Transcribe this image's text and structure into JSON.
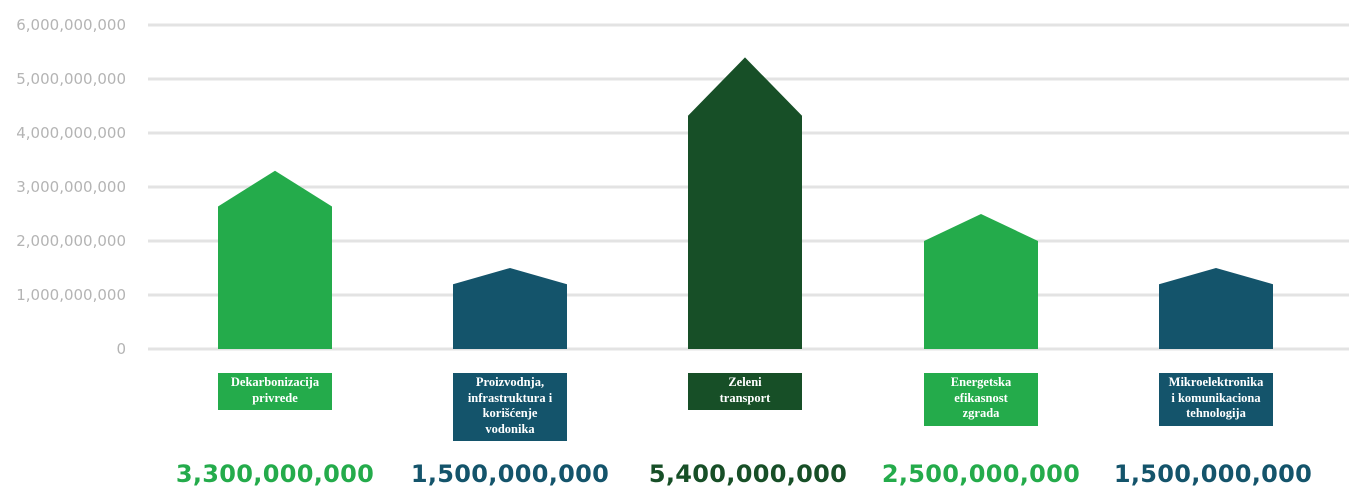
{
  "chart_data": {
    "type": "bar",
    "categories": [
      "Dekarbonizacija privrede",
      "Proizvodnja, infrastruktura i korišćenje vodonika",
      "Zeleni transport",
      "Energetska efikasnost zgrada",
      "Mikroelektronika i komunikaciona tehnologija"
    ],
    "category_label_lines": [
      [
        "Dekarbonizacija",
        "privrede"
      ],
      [
        "Proizvodnja,",
        "infrastruktura i",
        "korišćenje",
        "vodonika"
      ],
      [
        "Zeleni",
        "transport"
      ],
      [
        "Energetska",
        "efikasnost",
        "zgrada"
      ],
      [
        "Mikroelektronika",
        "i komunikaciona",
        "tehnologija"
      ]
    ],
    "values": [
      3300000000,
      1500000000,
      5400000000,
      2500000000,
      1500000000
    ],
    "value_labels": [
      "3,300,000,000",
      "1,500,000,000",
      "5,400,000,000",
      "2,500,000,000",
      "1,500,000,000"
    ],
    "colors": [
      "#24ab4b",
      "#14546b",
      "#174f27",
      "#24ab4b",
      "#14546b"
    ],
    "label_colors": [
      "#24ab4b",
      "#14546b",
      "#174f27",
      "#24ab4b",
      "#14546b"
    ],
    "ylim": [
      0,
      6000000000
    ],
    "yticks": [
      0,
      1000000000,
      2000000000,
      3000000000,
      4000000000,
      5000000000,
      6000000000
    ],
    "ytick_labels": [
      "0",
      "1,000,000,000",
      "2,000,000,000",
      "3,000,000,000",
      "4,000,000,000",
      "5,000,000,000",
      "6,000,000,000"
    ],
    "grid": true,
    "bar_shape": "house-arrow"
  }
}
